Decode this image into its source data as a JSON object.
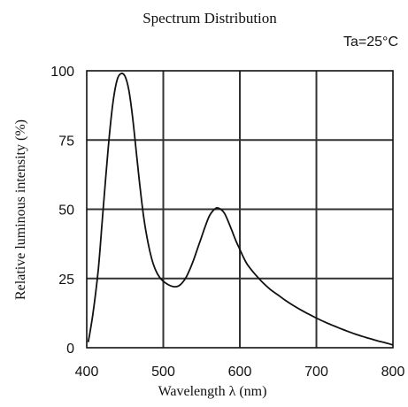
{
  "chart_data": {
    "type": "line",
    "title": "Spectrum Distribution",
    "condition": "Ta=25°C",
    "xlabel": "Wavelength λ (nm)",
    "ylabel": "Relative luminous intensity (%)",
    "xlim": [
      400,
      800
    ],
    "ylim": [
      0,
      100
    ],
    "xticks": [
      "400",
      "500",
      "600",
      "700",
      "800"
    ],
    "yticks": [
      "0",
      "25",
      "50",
      "75",
      "100"
    ],
    "grid": true,
    "series": [
      {
        "x": [
          402,
          408,
          415,
          420,
          425,
          430,
          435,
          440,
          445,
          450,
          455,
          460,
          465,
          470,
          475,
          480,
          485,
          490,
          495,
          500,
          505,
          510,
          515,
          520,
          525,
          530,
          535,
          540,
          545,
          550,
          555,
          560,
          565,
          570,
          575,
          580,
          585,
          590,
          595,
          600,
          605,
          610,
          620,
          630,
          640,
          650,
          660,
          670,
          680,
          690,
          700,
          710,
          720,
          730,
          740,
          750,
          760,
          770,
          780,
          790,
          800
        ],
        "values": [
          2,
          12,
          28,
          45,
          62,
          78,
          90,
          97,
          99,
          98,
          93,
          83,
          70,
          57,
          46,
          38,
          32,
          28,
          25.5,
          24,
          23,
          22.3,
          22,
          22.3,
          23.5,
          25.5,
          28.5,
          32,
          36,
          40,
          44,
          47.5,
          49.5,
          50.5,
          50,
          48.5,
          45.5,
          42,
          38.5,
          35.5,
          32.5,
          30,
          26.5,
          23.5,
          21,
          19,
          17,
          15.2,
          13.6,
          12.1,
          10.7,
          9.4,
          8.2,
          7.1,
          6,
          5,
          4.1,
          3.3,
          2.5,
          1.8,
          1
        ]
      }
    ]
  }
}
